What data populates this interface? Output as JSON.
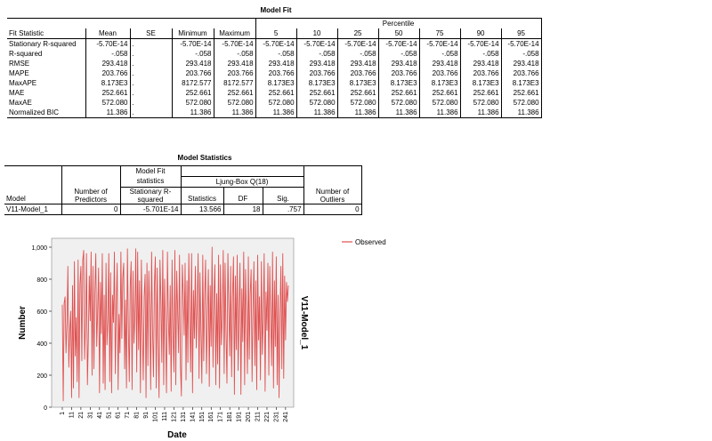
{
  "model_fit": {
    "title": "Model Fit",
    "percentile_header": "Percentile",
    "columns": [
      "Fit Statistic",
      "Mean",
      "SE",
      "Minimum",
      "Maximum",
      "5",
      "10",
      "25",
      "50",
      "75",
      "90",
      "95"
    ],
    "rows": [
      [
        "Stationary R-squared",
        "-5.70E-14",
        ".",
        "-5.70E-14",
        "-5.70E-14",
        "-5.70E-14",
        "-5.70E-14",
        "-5.70E-14",
        "-5.70E-14",
        "-5.70E-14",
        "-5.70E-14",
        "-5.70E-14"
      ],
      [
        "R-squared",
        "-.058",
        ".",
        "-.058",
        "-.058",
        "-.058",
        "-.058",
        "-.058",
        "-.058",
        "-.058",
        "-.058",
        "-.058"
      ],
      [
        "RMSE",
        "293.418",
        ".",
        "293.418",
        "293.418",
        "293.418",
        "293.418",
        "293.418",
        "293.418",
        "293.418",
        "293.418",
        "293.418"
      ],
      [
        "MAPE",
        "203.766",
        ".",
        "203.766",
        "203.766",
        "203.766",
        "203.766",
        "203.766",
        "203.766",
        "203.766",
        "203.766",
        "203.766"
      ],
      [
        "MaxAPE",
        "8.173E3",
        ".",
        "8172.577",
        "8172.577",
        "8.173E3",
        "8.173E3",
        "8.173E3",
        "8.173E3",
        "8.173E3",
        "8.173E3",
        "8.173E3"
      ],
      [
        "MAE",
        "252.661",
        ".",
        "252.661",
        "252.661",
        "252.661",
        "252.661",
        "252.661",
        "252.661",
        "252.661",
        "252.661",
        "252.661"
      ],
      [
        "MaxAE",
        "572.080",
        ".",
        "572.080",
        "572.080",
        "572.080",
        "572.080",
        "572.080",
        "572.080",
        "572.080",
        "572.080",
        "572.080"
      ],
      [
        "Normalized BIC",
        "11.386",
        ".",
        "11.386",
        "11.386",
        "11.386",
        "11.386",
        "11.386",
        "11.386",
        "11.386",
        "11.386",
        "11.386"
      ]
    ]
  },
  "model_statistics": {
    "title": "Model Statistics",
    "h_model": "Model",
    "h_predictors": "Number of Predictors",
    "h_fit_group_1": "Model Fit",
    "h_fit_group_2": "statistics",
    "h_stationary": "Stationary R-squared",
    "h_ljung": "Ljung-Box Q(18)",
    "h_statistics": "Statistics",
    "h_df": "DF",
    "h_sig": "Sig.",
    "h_outliers": "Number of Outliers",
    "row": {
      "model": "V11-Model_1",
      "predictors": "0",
      "stationary": "-5.701E-14",
      "statistics": "13.566",
      "df": "18",
      "sig": ".757",
      "outliers": "0"
    }
  },
  "colors": {
    "observed": "#e05050",
    "plot_bg": "#f0f0f0"
  },
  "chart_data": {
    "type": "line",
    "xlabel": "Date",
    "ylabel": "Number",
    "panel_label": "V11-Model_1",
    "ylim": [
      0,
      1000
    ],
    "yticks": [
      "0",
      "200",
      "400",
      "600",
      "800",
      "1,000"
    ],
    "xticks": [
      "1",
      "11",
      "21",
      "31",
      "41",
      "51",
      "61",
      "71",
      "81",
      "91",
      "101",
      "111",
      "121",
      "131",
      "141",
      "151",
      "161",
      "171",
      "181",
      "191",
      "201",
      "211",
      "221",
      "231",
      "241"
    ],
    "series": [
      {
        "name": "Observed",
        "x_start": 1,
        "values": [
          640,
          40,
          650,
          690,
          340,
          520,
          880,
          250,
          470,
          600,
          60,
          760,
          120,
          910,
          320,
          560,
          160,
          920,
          60,
          770,
          880,
          290,
          920,
          980,
          300,
          520,
          960,
          140,
          430,
          820,
          540,
          970,
          200,
          880,
          240,
          720,
          960,
          380,
          600,
          870,
          90,
          780,
          460,
          960,
          150,
          700,
          110,
          900,
          390,
          540,
          960,
          160,
          840,
          90,
          700,
          530,
          970,
          210,
          640,
          900,
          110,
          580,
          340,
          970,
          430,
          810,
          900,
          240,
          670,
          120,
          990,
          500,
          160,
          750,
          910,
          110,
          850,
          400,
          560,
          990,
          220,
          970,
          360,
          790,
          90,
          920,
          520,
          170,
          690,
          830,
          60,
          900,
          260,
          850,
          610,
          110,
          970,
          480,
          190,
          760,
          940,
          120,
          870,
          420,
          60,
          920,
          670,
          280,
          980,
          140,
          800,
          470,
          90,
          970,
          560,
          330,
          760,
          100,
          920,
          460,
          220,
          980,
          140,
          850,
          600,
          340,
          950,
          260,
          70,
          890,
          710,
          450,
          900,
          170,
          790,
          280,
          960,
          550,
          220,
          960,
          90,
          730,
          430,
          880,
          370,
          620,
          960,
          180,
          840,
          480,
          150,
          950,
          290,
          680,
          920,
          210,
          560,
          860,
          130,
          760,
          380,
          1000,
          250,
          680,
          890,
          140,
          710,
          270,
          950,
          120,
          890,
          390,
          560,
          980,
          210,
          900,
          470,
          150,
          960,
          620,
          320,
          880,
          190,
          690,
          940,
          80,
          820,
          360,
          950,
          230,
          600,
          900,
          80,
          740,
          410,
          970,
          140,
          860,
          560,
          210,
          940,
          300,
          710,
          860,
          160,
          620,
          910,
          260,
          790,
          110,
          950,
          420,
          690,
          170,
          910,
          330,
          540,
          960,
          100,
          720,
          480,
          900,
          200,
          880,
          560,
          260,
          970,
          120,
          790,
          380,
          940,
          140,
          700,
          60,
          580,
          880,
          240,
          960,
          180,
          820,
          420,
          780,
          660,
          760
        ]
      }
    ]
  }
}
